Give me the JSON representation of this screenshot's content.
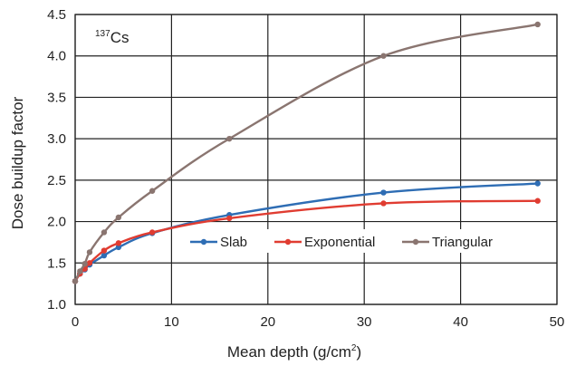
{
  "chart_data": {
    "type": "line",
    "annotation": {
      "mass_number": "137",
      "element": "Cs"
    },
    "xlabel": {
      "text": "Mean depth (g/cm",
      "superscript": "2",
      "suffix": ")"
    },
    "ylabel": "Dose buildup factor",
    "xlim": [
      0,
      50
    ],
    "ylim": [
      1.0,
      4.5
    ],
    "x_ticks": [
      "0",
      "10",
      "20",
      "30",
      "40",
      "50"
    ],
    "y_ticks": [
      "1.0",
      "1.5",
      "2.0",
      "2.5",
      "3.0",
      "3.5",
      "4.0",
      "4.5"
    ],
    "x_tick_values": [
      0,
      10,
      20,
      30,
      40,
      50
    ],
    "y_tick_values": [
      1.0,
      1.5,
      2.0,
      2.5,
      3.0,
      3.5,
      4.0,
      4.5
    ],
    "grid": true,
    "legend_position": "center-right",
    "series": [
      {
        "name": "Slab",
        "color": "#2e6db4",
        "x": [
          0,
          0.5,
          1,
          1.5,
          3,
          4.5,
          8,
          16,
          32,
          48
        ],
        "y": [
          1.28,
          1.37,
          1.42,
          1.48,
          1.59,
          1.69,
          1.86,
          2.08,
          2.35,
          2.46
        ]
      },
      {
        "name": "Exponential",
        "color": "#e03c31",
        "x": [
          0,
          0.5,
          1,
          1.5,
          3,
          4.5,
          8,
          16,
          32,
          48
        ],
        "y": [
          1.28,
          1.37,
          1.43,
          1.5,
          1.65,
          1.74,
          1.87,
          2.04,
          2.22,
          2.25
        ]
      },
      {
        "name": "Triangular",
        "color": "#8a7570",
        "x": [
          0,
          0.5,
          1,
          1.5,
          3,
          4.5,
          8,
          16,
          32,
          48
        ],
        "y": [
          1.28,
          1.4,
          1.49,
          1.63,
          1.87,
          2.05,
          2.37,
          3.0,
          4.0,
          4.38
        ]
      }
    ]
  }
}
